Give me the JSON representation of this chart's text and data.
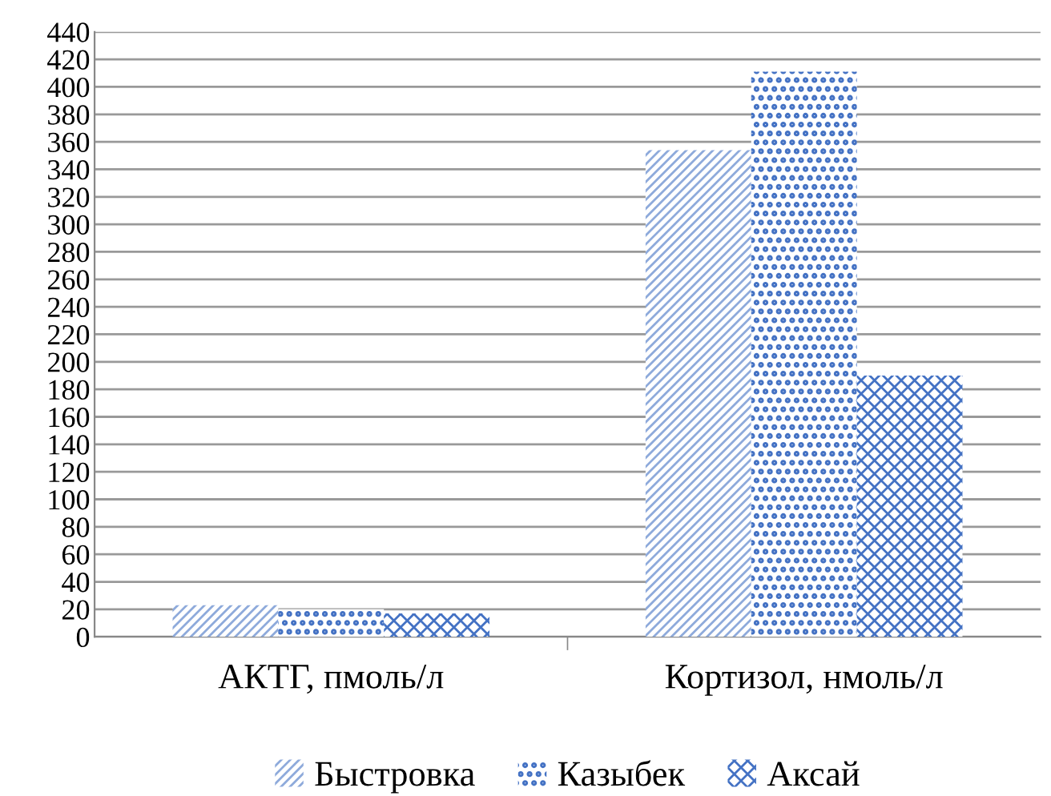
{
  "chart_data": {
    "type": "bar",
    "categories": [
      "АКТГ, пмоль/л",
      "Кортизол, нмоль/л"
    ],
    "series": [
      {
        "name": "Быстровка",
        "color": "#8eaadb",
        "values": [
          23,
          354
        ]
      },
      {
        "name": "Казыбек",
        "color": "#4472c4",
        "values": [
          20,
          411
        ]
      },
      {
        "name": "Аксай",
        "color": "#4472c4",
        "values": [
          17,
          190
        ]
      }
    ],
    "ylim": [
      0,
      440
    ],
    "yticks": [
      0,
      20,
      40,
      60,
      80,
      100,
      120,
      140,
      160,
      180,
      200,
      220,
      240,
      260,
      280,
      300,
      320,
      340,
      360,
      380,
      400,
      420,
      440
    ],
    "grid": "y",
    "legend": "bottom"
  }
}
